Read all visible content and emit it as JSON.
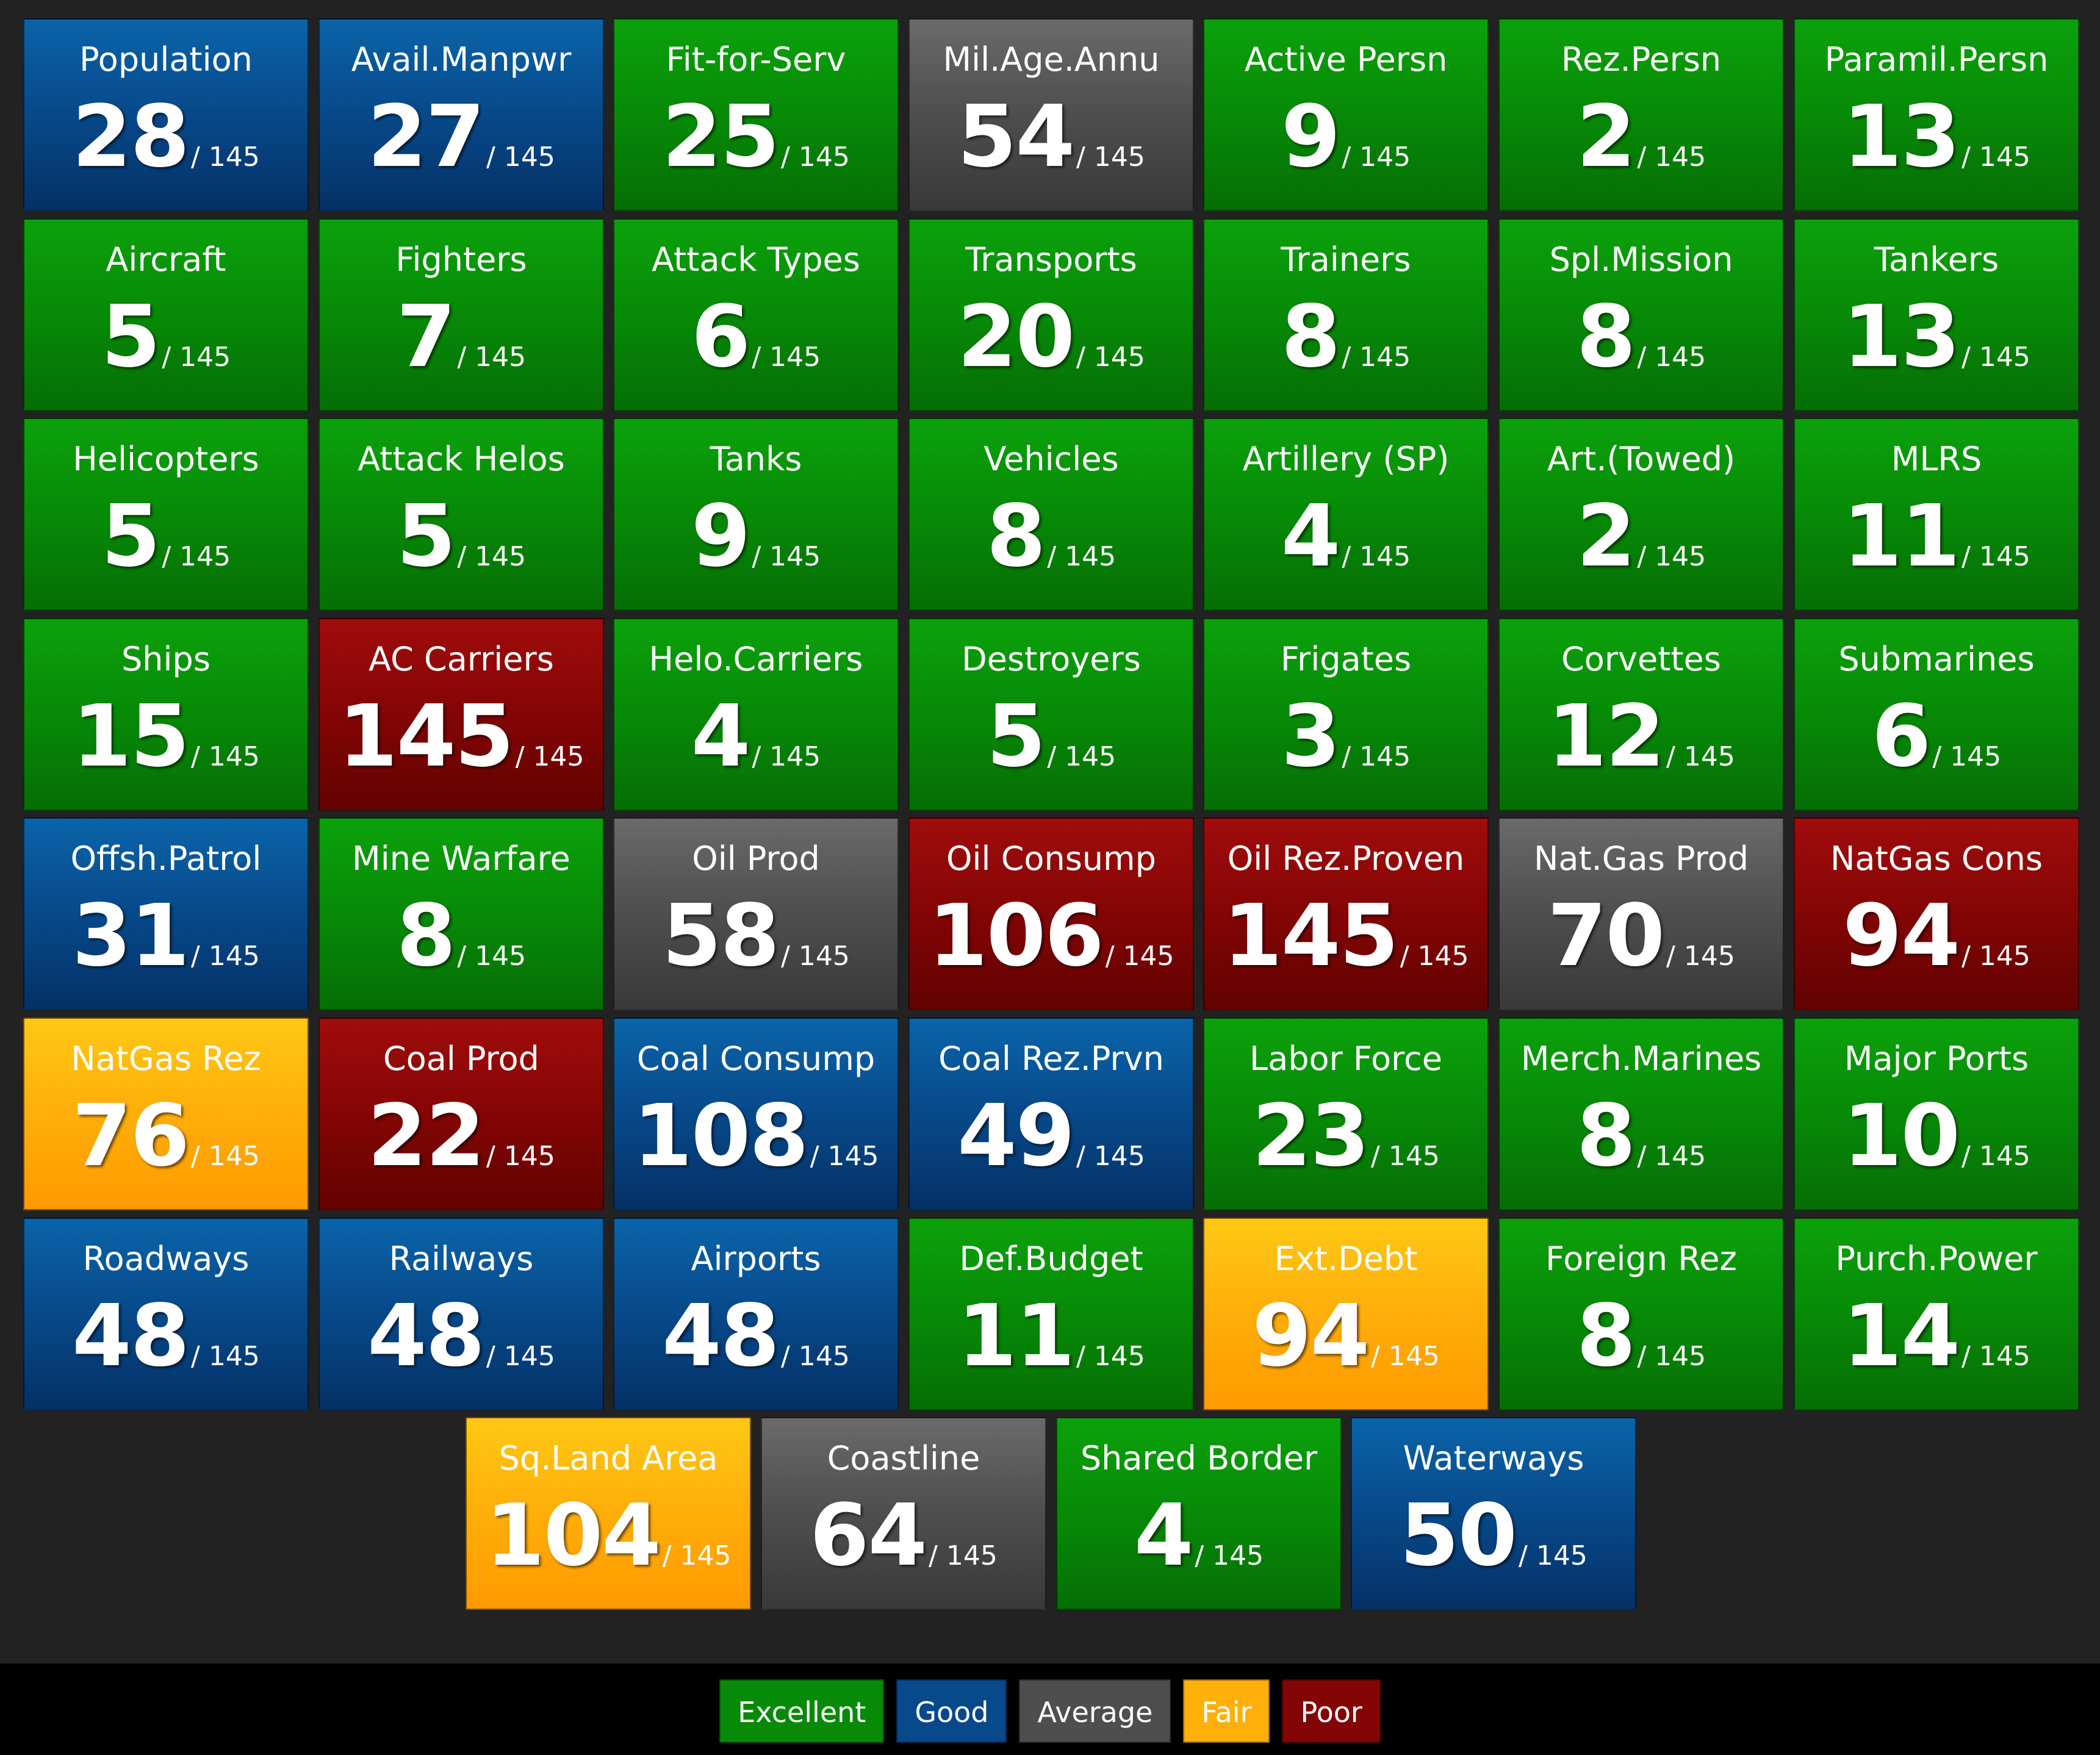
{
  "chart_data": {
    "type": "table",
    "total": "/ 145",
    "categories": {
      "excellent": "Excellent",
      "good": "Good",
      "average": "Average",
      "fair": "Fair",
      "poor": "Poor"
    },
    "colors": {
      "excellent": "#078a07",
      "good": "#07498a",
      "average": "#4e4e4e",
      "fair": "#ffb00a",
      "poor": "#840505"
    },
    "rows": [
      [
        {
          "label": "Population",
          "rank": "28",
          "category": "good"
        },
        {
          "label": "Avail.Manpwr",
          "rank": "27",
          "category": "good"
        },
        {
          "label": "Fit-for-Serv",
          "rank": "25",
          "category": "excellent"
        },
        {
          "label": "Mil.Age.Annu",
          "rank": "54",
          "category": "average"
        },
        {
          "label": "Active Persn",
          "rank": "9",
          "category": "excellent"
        },
        {
          "label": "Rez.Persn",
          "rank": "2",
          "category": "excellent"
        },
        {
          "label": "Paramil.Persn",
          "rank": "13",
          "category": "excellent"
        }
      ],
      [
        {
          "label": "Aircraft",
          "rank": "5",
          "category": "excellent"
        },
        {
          "label": "Fighters",
          "rank": "7",
          "category": "excellent"
        },
        {
          "label": "Attack Types",
          "rank": "6",
          "category": "excellent"
        },
        {
          "label": "Transports",
          "rank": "20",
          "category": "excellent"
        },
        {
          "label": "Trainers",
          "rank": "8",
          "category": "excellent"
        },
        {
          "label": "Spl.Mission",
          "rank": "8",
          "category": "excellent"
        },
        {
          "label": "Tankers",
          "rank": "13",
          "category": "excellent"
        }
      ],
      [
        {
          "label": "Helicopters",
          "rank": "5",
          "category": "excellent"
        },
        {
          "label": "Attack Helos",
          "rank": "5",
          "category": "excellent"
        },
        {
          "label": "Tanks",
          "rank": "9",
          "category": "excellent"
        },
        {
          "label": "Vehicles",
          "rank": "8",
          "category": "excellent"
        },
        {
          "label": "Artillery (SP)",
          "rank": "4",
          "category": "excellent"
        },
        {
          "label": "Art.(Towed)",
          "rank": "2",
          "category": "excellent"
        },
        {
          "label": "MLRS",
          "rank": "11",
          "category": "excellent"
        }
      ],
      [
        {
          "label": "Ships",
          "rank": "15",
          "category": "excellent"
        },
        {
          "label": "AC Carriers",
          "rank": "145",
          "category": "poor"
        },
        {
          "label": "Helo.Carriers",
          "rank": "4",
          "category": "excellent"
        },
        {
          "label": "Destroyers",
          "rank": "5",
          "category": "excellent"
        },
        {
          "label": "Frigates",
          "rank": "3",
          "category": "excellent"
        },
        {
          "label": "Corvettes",
          "rank": "12",
          "category": "excellent"
        },
        {
          "label": "Submarines",
          "rank": "6",
          "category": "excellent"
        }
      ],
      [
        {
          "label": "Offsh.Patrol",
          "rank": "31",
          "category": "good"
        },
        {
          "label": "Mine Warfare",
          "rank": "8",
          "category": "excellent"
        },
        {
          "label": "Oil Prod",
          "rank": "58",
          "category": "average"
        },
        {
          "label": "Oil Consump",
          "rank": "106",
          "category": "poor"
        },
        {
          "label": "Oil Rez.Proven",
          "rank": "145",
          "category": "poor"
        },
        {
          "label": "Nat.Gas Prod",
          "rank": "70",
          "category": "average"
        },
        {
          "label": "NatGas Cons",
          "rank": "94",
          "category": "poor"
        }
      ],
      [
        {
          "label": "NatGas Rez",
          "rank": "76",
          "category": "fair"
        },
        {
          "label": "Coal Prod",
          "rank": "22",
          "category": "poor"
        },
        {
          "label": "Coal Consump",
          "rank": "108",
          "category": "good"
        },
        {
          "label": "Coal Rez.Prvn",
          "rank": "49",
          "category": "good"
        },
        {
          "label": "Labor Force",
          "rank": "23",
          "category": "excellent"
        },
        {
          "label": "Merch.Marines",
          "rank": "8",
          "category": "excellent"
        },
        {
          "label": "Major Ports",
          "rank": "10",
          "category": "excellent"
        }
      ],
      [
        {
          "label": "Roadways",
          "rank": "48",
          "category": "good"
        },
        {
          "label": "Railways",
          "rank": "48",
          "category": "good"
        },
        {
          "label": "Airports",
          "rank": "48",
          "category": "good"
        },
        {
          "label": "Def.Budget",
          "rank": "11",
          "category": "excellent"
        },
        {
          "label": "Ext.Debt",
          "rank": "94",
          "category": "fair"
        },
        {
          "label": "Foreign Rez",
          "rank": "8",
          "category": "excellent"
        },
        {
          "label": "Purch.Power",
          "rank": "14",
          "category": "excellent"
        }
      ],
      [
        {
          "label": "Sq.Land Area",
          "rank": "104",
          "category": "fair"
        },
        {
          "label": "Coastline",
          "rank": "64",
          "category": "average"
        },
        {
          "label": "Shared Border",
          "rank": "4",
          "category": "excellent"
        },
        {
          "label": "Waterways",
          "rank": "50",
          "category": "good"
        }
      ]
    ],
    "legend": [
      "excellent",
      "good",
      "average",
      "fair",
      "poor"
    ],
    "legend_placement": "bottom-center"
  }
}
